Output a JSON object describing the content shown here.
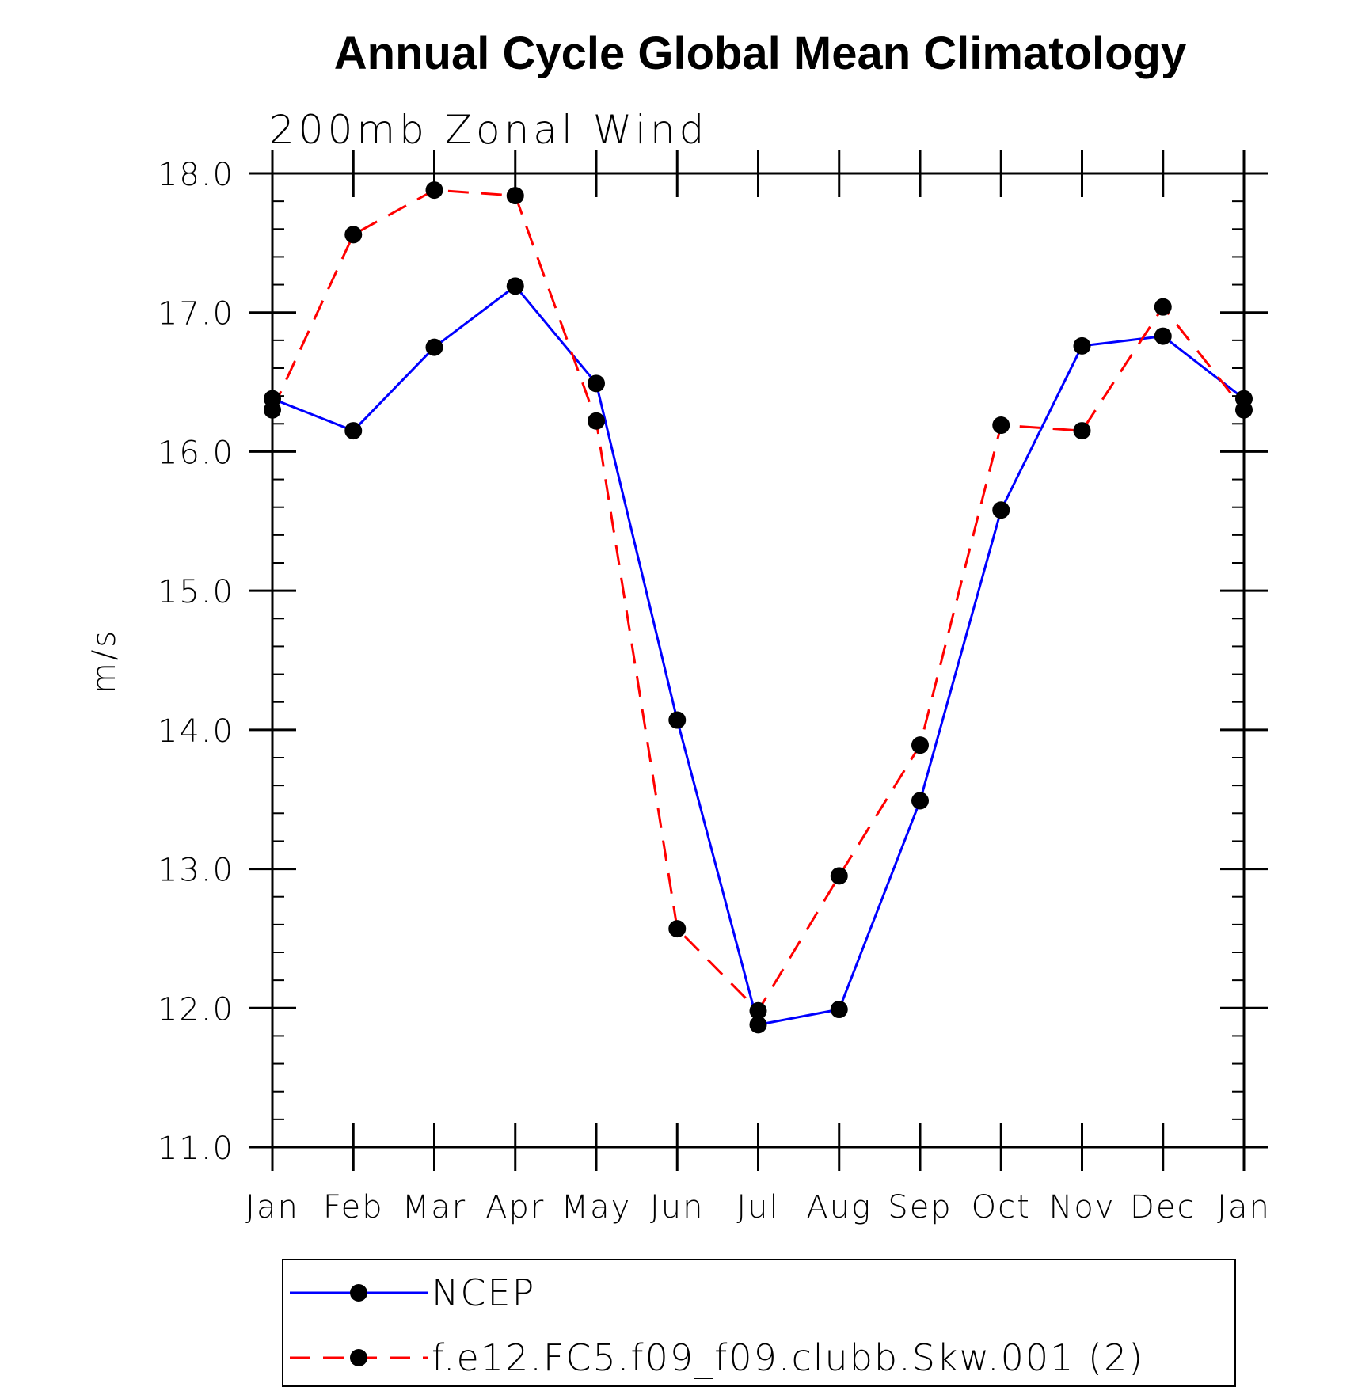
{
  "chart_data": {
    "type": "line",
    "title": "Annual Cycle Global Mean Climatology",
    "subtitle": "200mb Zonal Wind",
    "ylabel": "m/s",
    "xlabel": "",
    "categories": [
      "Jan",
      "Feb",
      "Mar",
      "Apr",
      "May",
      "Jun",
      "Jul",
      "Aug",
      "Sep",
      "Oct",
      "Nov",
      "Dec",
      "Jan"
    ],
    "ylim": [
      11.0,
      18.0
    ],
    "yticks": [
      "11.0",
      "12.0",
      "13.0",
      "14.0",
      "15.0",
      "16.0",
      "17.0",
      "18.0"
    ],
    "y_minor_step": 0.2,
    "grid": false,
    "legend_position": "bottom",
    "series": [
      {
        "name": "NCEP",
        "color": "#0000ff",
        "dash": "solid",
        "marker": "filled-circle",
        "values": [
          16.38,
          16.15,
          16.75,
          17.19,
          16.49,
          14.07,
          11.88,
          11.99,
          13.49,
          15.58,
          16.76,
          16.83,
          16.38
        ]
      },
      {
        "name": "f.e12.FC5.f09_f09.clubb.Skw.001 (2)",
        "color": "#ff0000",
        "dash": "dashed",
        "marker": "filled-circle",
        "values": [
          16.3,
          17.56,
          17.88,
          17.84,
          16.22,
          12.57,
          11.98,
          12.95,
          13.89,
          16.19,
          16.15,
          17.04,
          16.3
        ]
      }
    ]
  }
}
